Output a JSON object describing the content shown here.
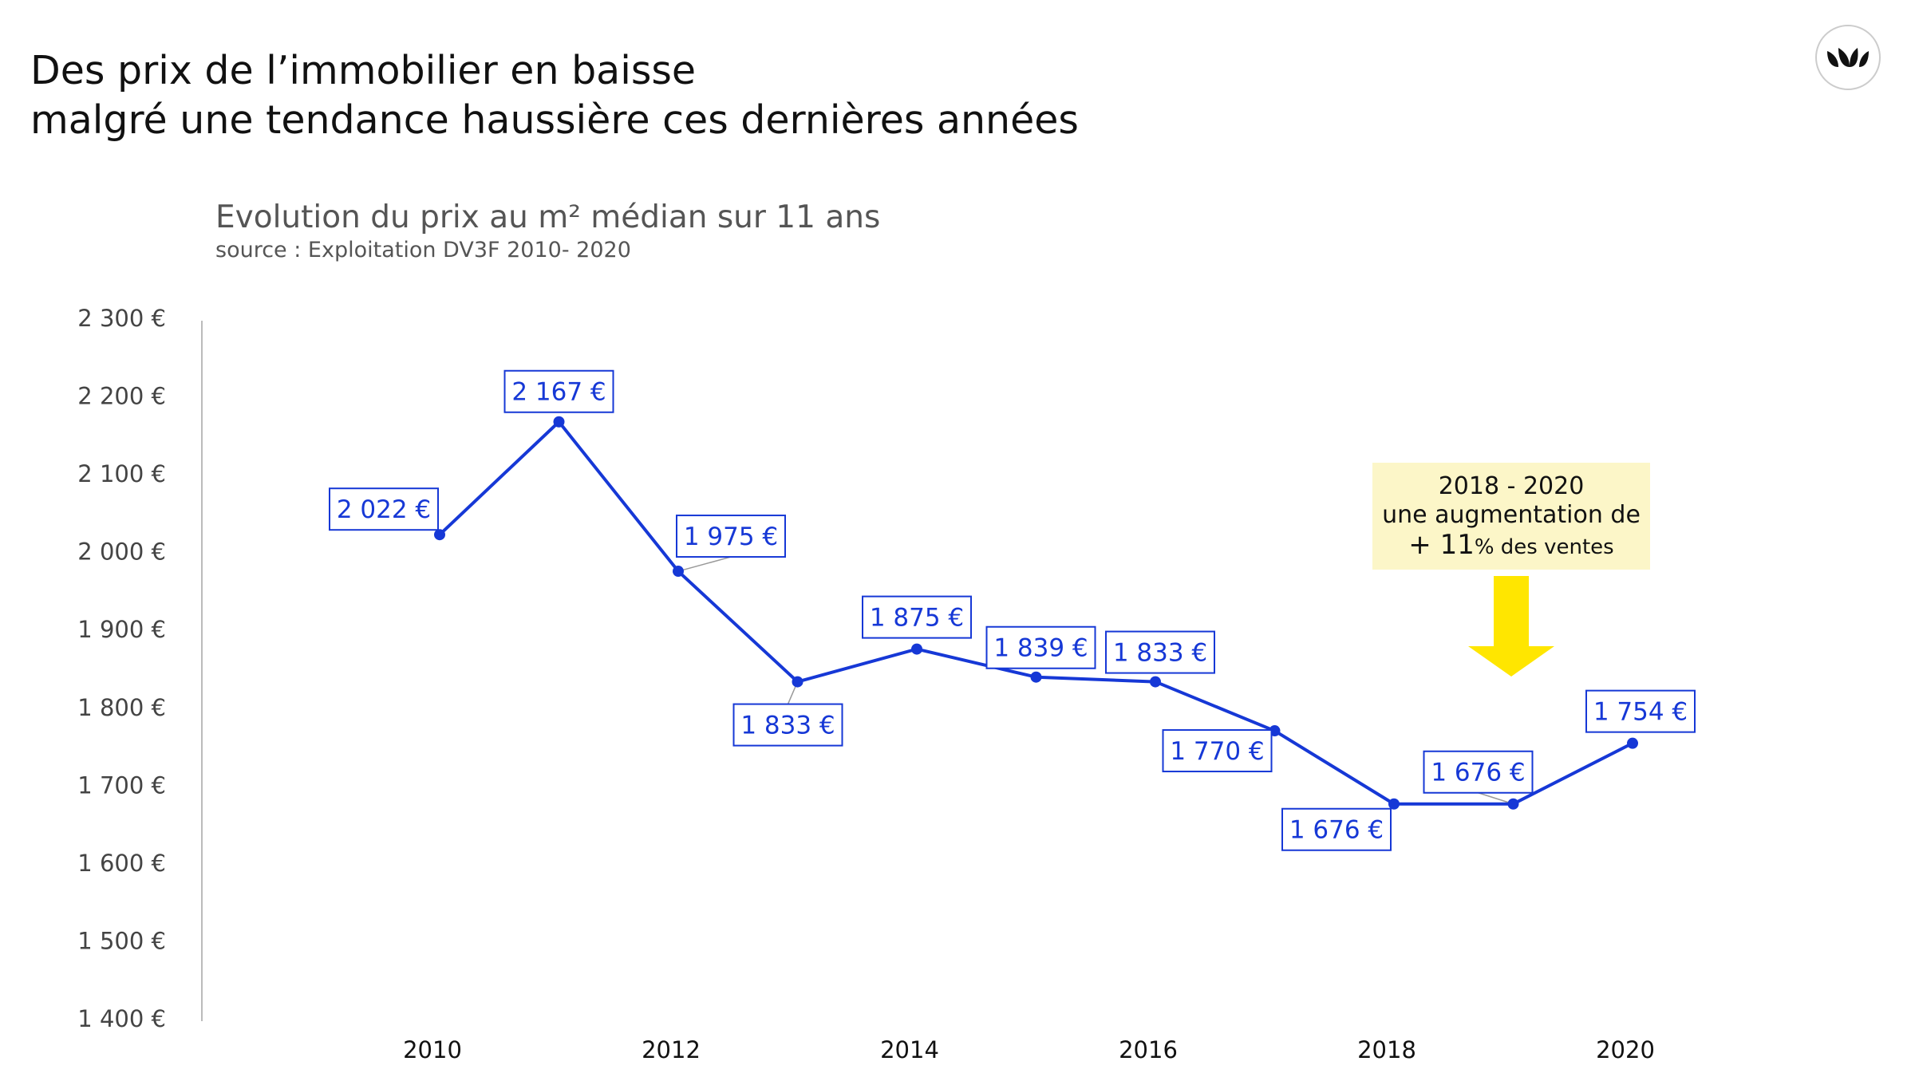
{
  "header": {
    "title_line1": "Des prix de l’immobilier en baisse",
    "title_line2": "malgré une tendance haussière ces dernières années"
  },
  "colors": {
    "series": "#1638d6",
    "axis": "#bbbbbb",
    "annotation_bg": "#fcf6c8",
    "arrow": "#ffe600",
    "text": "#111111"
  },
  "chart_data": {
    "type": "line",
    "title": "Evolution du prix au m² médian sur 11 ans",
    "subtitle": "source : Exploitation DV3F 2010- 2020",
    "x": [
      2010,
      2011,
      2012,
      2013,
      2014,
      2015,
      2016,
      2017,
      2018,
      2019,
      2020
    ],
    "x_tick_labels": [
      "2010",
      "2012",
      "2014",
      "2016",
      "2018",
      "2020"
    ],
    "x_tick_values": [
      2010,
      2012,
      2014,
      2016,
      2018,
      2020
    ],
    "series": [
      {
        "values": [
          2022,
          2167,
          1975,
          1833,
          1875,
          1839,
          1833,
          1770,
          1676,
          1676,
          1754
        ],
        "labels": [
          "2 022 €",
          "2 167 €",
          "1 975 €",
          "1 833 €",
          "1 875 €",
          "1 839 €",
          "1 833 €",
          "1 770 €",
          "1 676 €",
          "1 676 €",
          "1 754 €"
        ]
      }
    ],
    "ylim": [
      1400,
      2300
    ],
    "y_tick_values": [
      1400,
      1500,
      1600,
      1700,
      1800,
      1900,
      2000,
      2100,
      2200,
      2300
    ],
    "y_tick_labels": [
      "1 400 €",
      "1 500 €",
      "1 600 €",
      "1 700 €",
      "1 800 €",
      "1 900 €",
      "2 000 €",
      "2 100 €",
      "2 200 €",
      "2 300 €"
    ],
    "grid": false,
    "legend": "none",
    "annotation": {
      "line1": "2018 - 2020",
      "line2": "une augmentation de",
      "line3_prefix": "+ ",
      "line3_value": "11",
      "line3_suffix": "% des ventes"
    }
  }
}
